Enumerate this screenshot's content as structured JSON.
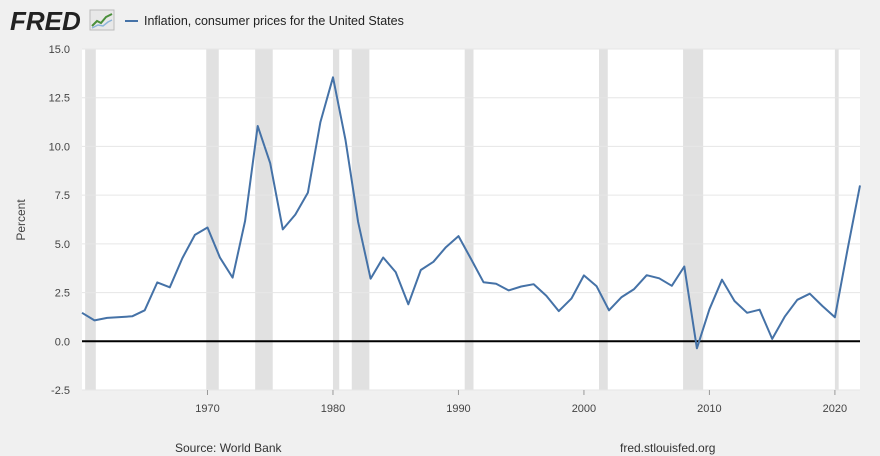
{
  "header": {
    "logo_text": "FRED",
    "logo_icon": "line-chart-icon",
    "legend_label": "Inflation, consumer prices for the United States"
  },
  "footer": {
    "source": "Source: World Bank",
    "site": "fred.stlouisfed.org"
  },
  "colors": {
    "line": "#4572a7",
    "recession": "#e1e1e1",
    "zero_line": "#000000",
    "plot_bg": "#ffffff",
    "page_bg": "#f0f0f0"
  },
  "chart_data": {
    "type": "line",
    "title": "Inflation, consumer prices for the United States",
    "xlabel": "",
    "ylabel": "Percent",
    "xlim": [
      1960,
      2022
    ],
    "ylim": [
      -2.5,
      15.0
    ],
    "yticks": [
      -2.5,
      0.0,
      2.5,
      5.0,
      7.5,
      10.0,
      12.5,
      15.0
    ],
    "ytick_labels": [
      "-2.5",
      "0.0",
      "2.5",
      "5.0",
      "7.5",
      "10.0",
      "12.5",
      "15.0"
    ],
    "xticks": [
      1970,
      1980,
      1990,
      2000,
      2010,
      2020
    ],
    "xtick_labels": [
      "1970",
      "1980",
      "1990",
      "2000",
      "2010",
      "2020"
    ],
    "grid": "horizontal",
    "recessions": [
      [
        1960.25,
        1961.1
      ],
      [
        1969.9,
        1970.9
      ],
      [
        1973.8,
        1975.2
      ],
      [
        1980.0,
        1980.5
      ],
      [
        1981.5,
        1982.9
      ],
      [
        1990.5,
        1991.2
      ],
      [
        2001.2,
        2001.9
      ],
      [
        2007.9,
        2009.5
      ],
      [
        2020.0,
        2020.3
      ]
    ],
    "series": [
      {
        "x": [
          1960,
          1961,
          1962,
          1963,
          1964,
          1965,
          1966,
          1967,
          1968,
          1969,
          1970,
          1971,
          1972,
          1973,
          1974,
          1975,
          1976,
          1977,
          1978,
          1979,
          1980,
          1981,
          1982,
          1983,
          1984,
          1985,
          1986,
          1987,
          1988,
          1989,
          1990,
          1991,
          1992,
          1993,
          1994,
          1995,
          1996,
          1997,
          1998,
          1999,
          2000,
          2001,
          2002,
          2003,
          2004,
          2005,
          2006,
          2007,
          2008,
          2009,
          2010,
          2011,
          2012,
          2013,
          2014,
          2015,
          2016,
          2017,
          2018,
          2019,
          2020,
          2021,
          2022
        ],
        "values": [
          1.46,
          1.07,
          1.2,
          1.24,
          1.28,
          1.59,
          3.02,
          2.77,
          4.27,
          5.46,
          5.84,
          4.29,
          3.27,
          6.18,
          11.05,
          9.14,
          5.74,
          6.5,
          7.63,
          11.25,
          13.55,
          10.33,
          6.13,
          3.21,
          4.3,
          3.55,
          1.9,
          3.66,
          4.08,
          4.83,
          5.4,
          4.23,
          3.03,
          2.95,
          2.61,
          2.81,
          2.93,
          2.34,
          1.55,
          2.19,
          3.38,
          2.83,
          1.59,
          2.27,
          2.68,
          3.39,
          3.23,
          2.85,
          3.84,
          -0.36,
          1.64,
          3.16,
          2.07,
          1.46,
          1.62,
          0.12,
          1.26,
          2.13,
          2.44,
          1.81,
          1.23,
          4.7,
          8.0
        ]
      }
    ]
  }
}
